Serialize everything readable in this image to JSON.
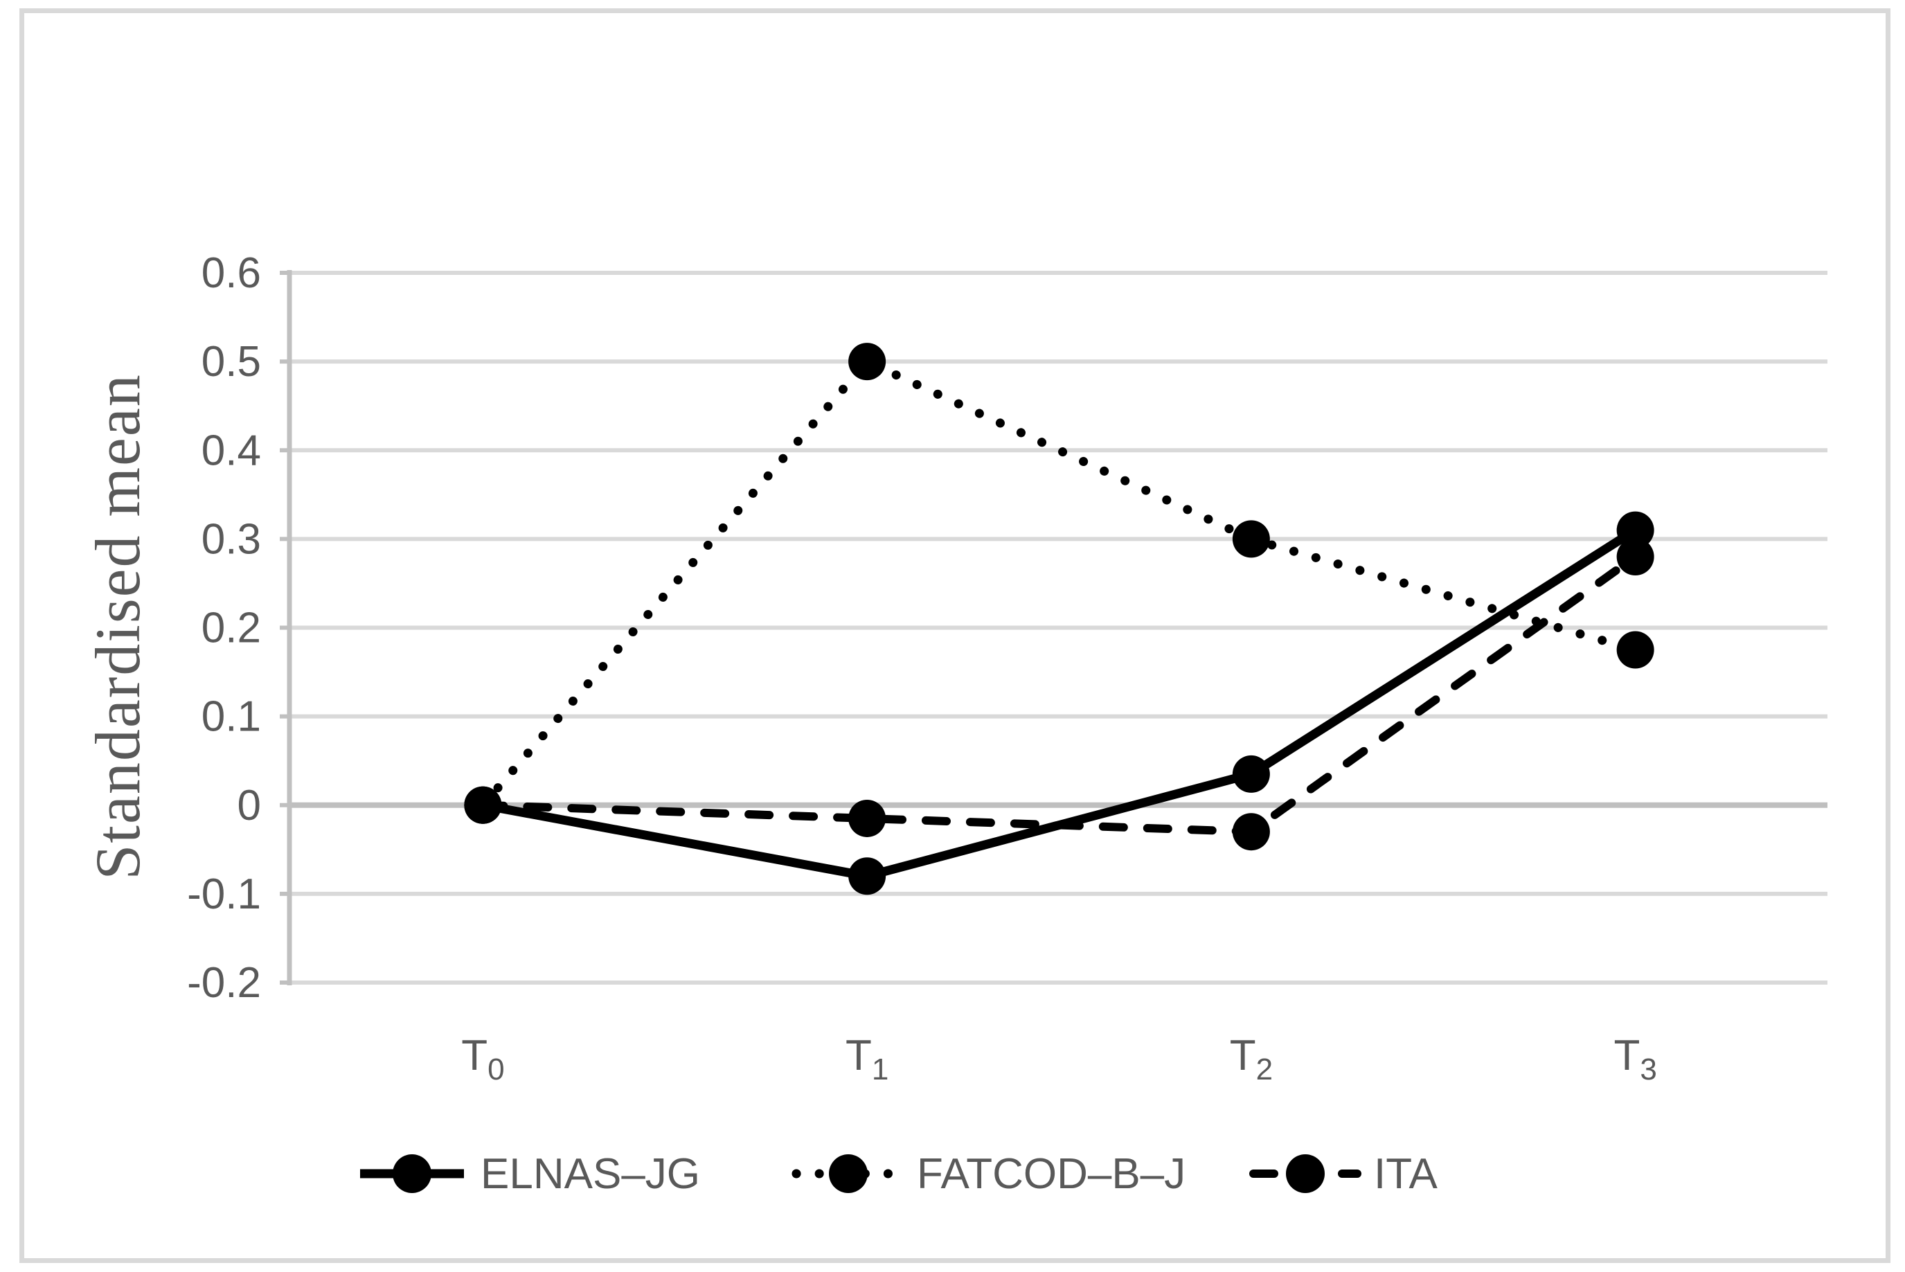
{
  "figure": {
    "background": "#ffffff",
    "border_color": "#d9d9d9"
  },
  "chart_data": {
    "type": "line",
    "title": "",
    "xlabel": "",
    "ylabel": "Standardised mean",
    "categories": [
      {
        "base": "T",
        "sub": "0"
      },
      {
        "base": "T",
        "sub": "1"
      },
      {
        "base": "T",
        "sub": "2"
      },
      {
        "base": "T",
        "sub": "3"
      }
    ],
    "series": [
      {
        "name": "ELNAS–JG",
        "line_style": "solid",
        "marker": "circle",
        "color": "#000000",
        "values": [
          0,
          -0.08,
          0.035,
          0.31
        ]
      },
      {
        "name": "FATCOD–B–J",
        "line_style": "dotted",
        "marker": "circle",
        "color": "#000000",
        "values": [
          0,
          0.5,
          0.3,
          0.175
        ]
      },
      {
        "name": "ITA",
        "line_style": "dashed",
        "marker": "circle",
        "color": "#000000",
        "values": [
          0,
          -0.015,
          -0.03,
          0.28
        ]
      }
    ],
    "ylim": [
      -0.2,
      0.6
    ],
    "ytick_step": 0.1,
    "ytick_labels": [
      "0.6",
      "0.5",
      "0.4",
      "0.3",
      "0.2",
      "0.1",
      "0",
      "-0.1",
      "-0.2"
    ],
    "grid": "horizontal",
    "legend_position": "bottom",
    "colors": {
      "text": "#595959",
      "gridline": "#d9d9d9",
      "zero_axis": "#bfbfbf",
      "axis_line": "#c0c0c0",
      "series": "#000000"
    }
  }
}
